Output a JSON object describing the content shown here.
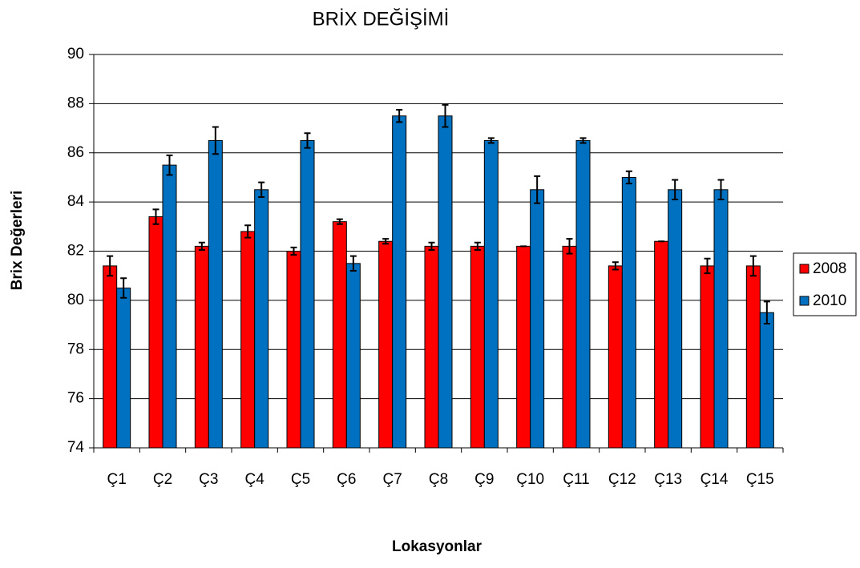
{
  "chart_data": {
    "type": "bar",
    "title": "BRİX  DEĞİŞİMİ",
    "x_label": "Lokasyonlar",
    "y_label": "Brix Değerleri",
    "categories": [
      "Ç1",
      "Ç2",
      "Ç3",
      "Ç4",
      "Ç5",
      "Ç6",
      "Ç7",
      "Ç8",
      "Ç9",
      "Ç10",
      "Ç11",
      "Ç12",
      "Ç13",
      "Ç14",
      "Ç15"
    ],
    "series": [
      {
        "name": "2008",
        "color": "#ff0000",
        "values": [
          81.4,
          83.4,
          82.2,
          82.8,
          82.0,
          83.2,
          82.4,
          82.2,
          82.2,
          82.2,
          82.2,
          81.4,
          82.4,
          81.4,
          81.4
        ],
        "errors": [
          0.4,
          0.3,
          0.15,
          0.25,
          0.15,
          0.1,
          0.1,
          0.15,
          0.15,
          0,
          0.3,
          0.15,
          0,
          0.3,
          0.4
        ]
      },
      {
        "name": "2010",
        "color": "#0070c0",
        "values": [
          80.5,
          85.5,
          86.5,
          84.5,
          86.5,
          81.5,
          87.5,
          87.5,
          86.5,
          84.5,
          86.5,
          85.0,
          84.5,
          84.5,
          79.5
        ],
        "errors": [
          0.4,
          0.4,
          0.55,
          0.3,
          0.3,
          0.3,
          0.25,
          0.45,
          0.1,
          0.55,
          0.1,
          0.25,
          0.4,
          0.4,
          0.45
        ]
      }
    ],
    "ylim": [
      74,
      90
    ],
    "yticks": [
      74,
      76,
      78,
      80,
      82,
      84,
      86,
      88,
      90
    ],
    "grid": true,
    "legend": "right"
  }
}
